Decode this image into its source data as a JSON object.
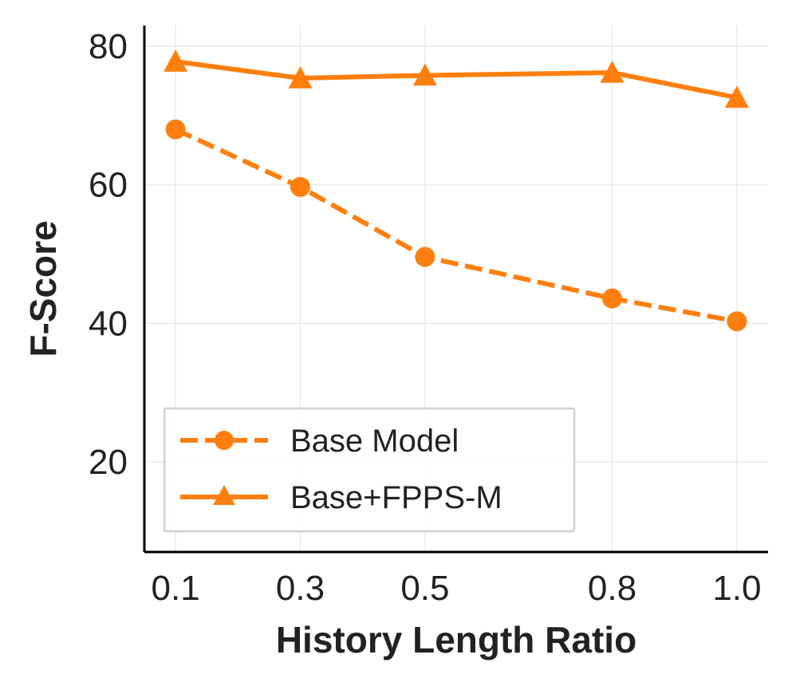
{
  "chart_data": {
    "type": "line",
    "title": "",
    "xlabel": "History Length Ratio",
    "ylabel": "F-Score",
    "x": [
      0.1,
      0.3,
      0.5,
      0.8,
      1.0
    ],
    "x_tick_labels": [
      "0.1",
      "0.3",
      "0.5",
      "0.8",
      "1.0"
    ],
    "y_ticks": [
      20,
      40,
      60,
      80
    ],
    "y_tick_labels": [
      "20",
      "40",
      "60",
      "80"
    ],
    "xlim": [
      0.05,
      1.05
    ],
    "ylim": [
      7,
      83
    ],
    "grid": true,
    "legend_position": "lower-left",
    "series": [
      {
        "name": "Base Model",
        "values": [
          68.0,
          59.7,
          49.6,
          43.6,
          40.3
        ],
        "color": "#ff7f0e",
        "linestyle": "dashed",
        "marker": "circle"
      },
      {
        "name": "Base+FPPS-M",
        "values": [
          77.8,
          75.4,
          75.8,
          76.2,
          72.6
        ],
        "color": "#ff7f0e",
        "linestyle": "solid",
        "marker": "triangle"
      }
    ]
  }
}
